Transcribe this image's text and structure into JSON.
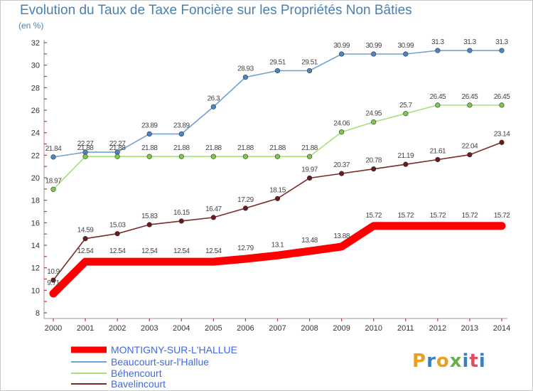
{
  "header": {
    "title": "Evolution du Taux de Taxe Foncière sur les Propriétés Non Bâties",
    "unit": "(en %)"
  },
  "logo": {
    "text": "Proxiti",
    "colors": [
      "#e8a020",
      "#3a7fc1",
      "#e8a020",
      "#6ab04c",
      "#3a7fc1",
      "#e84a5f",
      "#3a7fc1"
    ]
  },
  "chart_data": {
    "type": "line",
    "x": [
      2000,
      2001,
      2002,
      2003,
      2004,
      2005,
      2006,
      2007,
      2008,
      2009,
      2010,
      2011,
      2012,
      2013,
      2014
    ],
    "ylim": [
      8,
      32
    ],
    "yticks": [
      8,
      10,
      12,
      14,
      16,
      18,
      20,
      22,
      24,
      26,
      28,
      30,
      32
    ],
    "grid": "none",
    "legend_position": "bottom-left",
    "series": [
      {
        "name": "MONTIGNY-SUR-L'HALLUE",
        "color": "#ff0000",
        "emphasis": true,
        "values": [
          9.71,
          12.54,
          12.54,
          12.54,
          12.54,
          12.54,
          12.79,
          13.1,
          13.48,
          13.88,
          15.72,
          15.72,
          15.72,
          15.72,
          15.72
        ],
        "labels": [
          "9.71",
          "12.54",
          "12.54",
          "12.54",
          "12.54",
          "12.54",
          "12.79",
          "13.1",
          "13.48",
          "13.88",
          "15.72",
          "15.72",
          "15.72",
          "15.72",
          "15.72"
        ]
      },
      {
        "name": "Beaucourt-sur-l'Hallue",
        "color": "#6fa3d3",
        "marker": "#4a86c5",
        "values": [
          21.84,
          22.27,
          22.27,
          23.89,
          23.89,
          26.3,
          28.93,
          29.51,
          29.51,
          30.99,
          30.99,
          30.99,
          31.3,
          31.3,
          31.3
        ],
        "labels": [
          "21.84",
          "22.27",
          "22.27",
          "23.89",
          "23.89",
          "26.3",
          "28.93",
          "29.51",
          "29.51",
          "30.99",
          "30.99",
          "30.99",
          "31.3",
          "31.3",
          "31.3"
        ]
      },
      {
        "name": "Béhencourt",
        "color": "#a6e07a",
        "marker": "#7dc94a",
        "values": [
          18.97,
          21.88,
          21.88,
          21.88,
          21.88,
          21.88,
          21.88,
          21.88,
          21.88,
          24.06,
          24.95,
          25.7,
          26.45,
          26.45,
          26.45
        ],
        "labels": [
          "18.97",
          "21.88",
          "21.88",
          "21.88",
          "21.88",
          "21.88",
          "21.88",
          "21.88",
          "21.88",
          "24.06",
          "24.95",
          "25.7",
          "26.45",
          "26.45",
          "26.45"
        ]
      },
      {
        "name": "Bavelincourt",
        "color": "#7a2a2a",
        "marker": "#6a1a1a",
        "values": [
          10.9,
          14.59,
          15.03,
          15.83,
          16.15,
          16.47,
          17.29,
          18.15,
          19.97,
          20.37,
          20.78,
          21.19,
          21.61,
          22.04,
          23.14
        ],
        "labels": [
          "10.9",
          "14.59",
          "15.03",
          "15.83",
          "16.15",
          "16.47",
          "17.29",
          "18.15",
          "19.97",
          "20.37",
          "20.78",
          "21.19",
          "21.61",
          "22.04",
          "23.14"
        ]
      }
    ]
  }
}
